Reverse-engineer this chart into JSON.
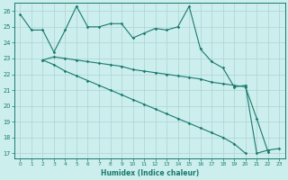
{
  "xlabel": "Humidex (Indice chaleur)",
  "xlim": [
    -0.5,
    23.5
  ],
  "ylim": [
    16.7,
    26.5
  ],
  "yticks": [
    17,
    18,
    19,
    20,
    21,
    22,
    23,
    24,
    25,
    26
  ],
  "xticks": [
    0,
    1,
    2,
    3,
    4,
    5,
    6,
    7,
    8,
    9,
    10,
    11,
    12,
    13,
    14,
    15,
    16,
    17,
    18,
    19,
    20,
    21,
    22,
    23
  ],
  "background_color": "#cceeed",
  "grid_color": "#aad4d2",
  "line_color": "#1a7a6e",
  "line1_x": [
    0,
    1,
    2,
    3,
    4,
    5,
    6,
    7,
    8,
    9,
    10,
    11,
    12,
    13,
    14,
    15,
    16,
    17,
    18,
    19,
    20,
    21,
    22,
    23
  ],
  "line1_y": [
    25.8,
    24.8,
    24.8,
    23.4,
    24.8,
    26.3,
    25.0,
    25.0,
    25.2,
    25.2,
    24.3,
    24.6,
    24.9,
    24.8,
    25.0,
    26.3,
    23.6,
    22.8,
    22.4,
    21.2,
    21.3,
    17.0,
    17.2,
    17.3
  ],
  "line2_x": [
    2,
    3,
    4,
    5,
    6,
    7,
    8,
    9,
    10,
    11,
    12,
    13,
    14,
    15,
    16,
    17,
    18,
    19,
    20,
    21,
    22
  ],
  "line2_y": [
    22.9,
    23.1,
    23.0,
    22.9,
    22.8,
    22.7,
    22.6,
    22.5,
    22.3,
    22.2,
    22.1,
    22.0,
    21.9,
    21.8,
    21.7,
    21.5,
    21.4,
    21.3,
    21.2,
    19.2,
    17.1
  ],
  "line3_x": [
    2,
    3,
    4,
    5,
    6,
    7,
    8,
    9,
    10,
    11,
    12,
    13,
    14,
    15,
    16,
    17,
    18,
    19,
    20
  ],
  "line3_y": [
    22.9,
    22.6,
    22.2,
    21.9,
    21.6,
    21.3,
    21.0,
    20.7,
    20.4,
    20.1,
    19.8,
    19.5,
    19.2,
    18.9,
    18.6,
    18.3,
    18.0,
    17.6,
    17.0
  ]
}
